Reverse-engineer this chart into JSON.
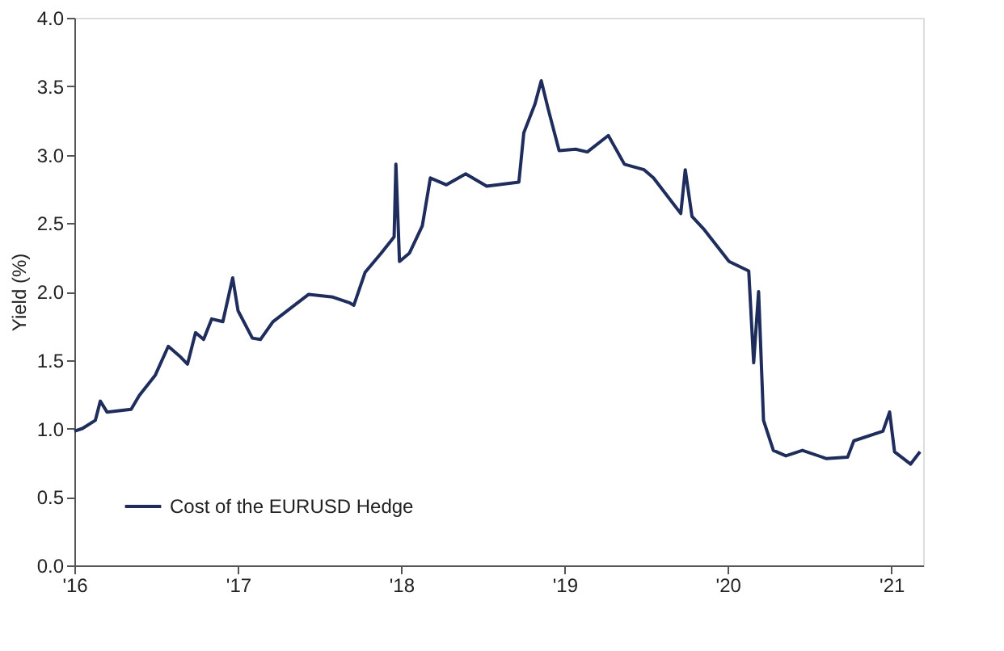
{
  "chart_data": {
    "type": "line",
    "ylabel": "Yield (%)",
    "legend": "bottom left",
    "grid": false,
    "line_style": "solid",
    "marker": "none",
    "xlim": [
      "2016-01-01",
      "2021-03-13"
    ],
    "xticks": [
      {
        "value": "2016-01-01",
        "label": "'16"
      },
      {
        "value": "2017-01-01",
        "label": "'17"
      },
      {
        "value": "2018-01-01",
        "label": "'18"
      },
      {
        "value": "2019-01-01",
        "label": "'19"
      },
      {
        "value": "2020-01-01",
        "label": "'20"
      },
      {
        "value": "2021-01-01",
        "label": "'21"
      }
    ],
    "ylim": [
      0,
      4
    ],
    "yticks": [
      {
        "value": 0,
        "label": "0.0"
      },
      {
        "value": 0.5,
        "label": "0.5"
      },
      {
        "value": 1,
        "label": "1.0"
      },
      {
        "value": 1.5,
        "label": "1.5"
      },
      {
        "value": 2,
        "label": "2.0"
      },
      {
        "value": 2.5,
        "label": "2.5"
      },
      {
        "value": 3,
        "label": "3.0"
      },
      {
        "value": 3.5,
        "label": "3.5"
      },
      {
        "value": 4,
        "label": "4.0"
      }
    ],
    "x": [
      "2016-01-01",
      "2016-01-19",
      "2016-02-17",
      "2016-02-28",
      "2016-03-14",
      "2016-05-07",
      "2016-05-25",
      "2016-06-30",
      "2016-07-29",
      "2016-08-23",
      "2016-09-10",
      "2016-09-28",
      "2016-10-16",
      "2016-11-03",
      "2016-11-28",
      "2016-12-20",
      "2017-01-01",
      "2017-02-02",
      "2017-02-20",
      "2017-03-20",
      "2017-05-03",
      "2017-06-08",
      "2017-08-01",
      "2017-09-06",
      "2017-09-17",
      "2017-10-12",
      "2017-11-17",
      "2017-12-16",
      "2017-12-20",
      "2017-12-28",
      "2018-01-19",
      "2018-02-17",
      "2018-03-07",
      "2018-04-12",
      "2018-05-25",
      "2018-07-11",
      "2018-09-21",
      "2018-10-02",
      "2018-10-27",
      "2018-11-10",
      "2018-11-25",
      "2018-12-20",
      "2019-01-26",
      "2019-02-21",
      "2019-04-09",
      "2019-05-15",
      "2019-06-28",
      "2019-07-19",
      "2019-09-18",
      "2019-09-28",
      "2019-10-13",
      "2019-11-10",
      "2020-01-04",
      "2020-02-17",
      "2020-02-28",
      "2020-03-10",
      "2020-03-21",
      "2020-04-12",
      "2020-05-10",
      "2020-06-16",
      "2020-08-09",
      "2020-09-25",
      "2020-10-09",
      "2020-12-13",
      "2020-12-28",
      "2021-01-08",
      "2021-02-13",
      "2021-03-06"
    ],
    "series": [
      {
        "name": "Cost of the EURUSD Hedge",
        "color": "#1f2d5c",
        "values": [
          0.98,
          1.0,
          1.06,
          1.2,
          1.12,
          1.14,
          1.24,
          1.39,
          1.6,
          1.53,
          1.47,
          1.7,
          1.65,
          1.8,
          1.78,
          2.1,
          1.86,
          1.66,
          1.65,
          1.78,
          1.89,
          1.98,
          1.96,
          1.92,
          1.9,
          2.14,
          2.28,
          2.4,
          2.93,
          2.22,
          2.28,
          2.48,
          2.83,
          2.78,
          2.86,
          2.77,
          2.8,
          3.16,
          3.37,
          3.54,
          3.34,
          3.03,
          3.04,
          3.02,
          3.14,
          2.93,
          2.89,
          2.83,
          2.57,
          2.89,
          2.55,
          2.45,
          2.22,
          2.15,
          1.48,
          2.0,
          1.06,
          0.84,
          0.8,
          0.84,
          0.78,
          0.79,
          0.91,
          0.98,
          1.12,
          0.83,
          0.74,
          0.83
        ]
      }
    ]
  }
}
